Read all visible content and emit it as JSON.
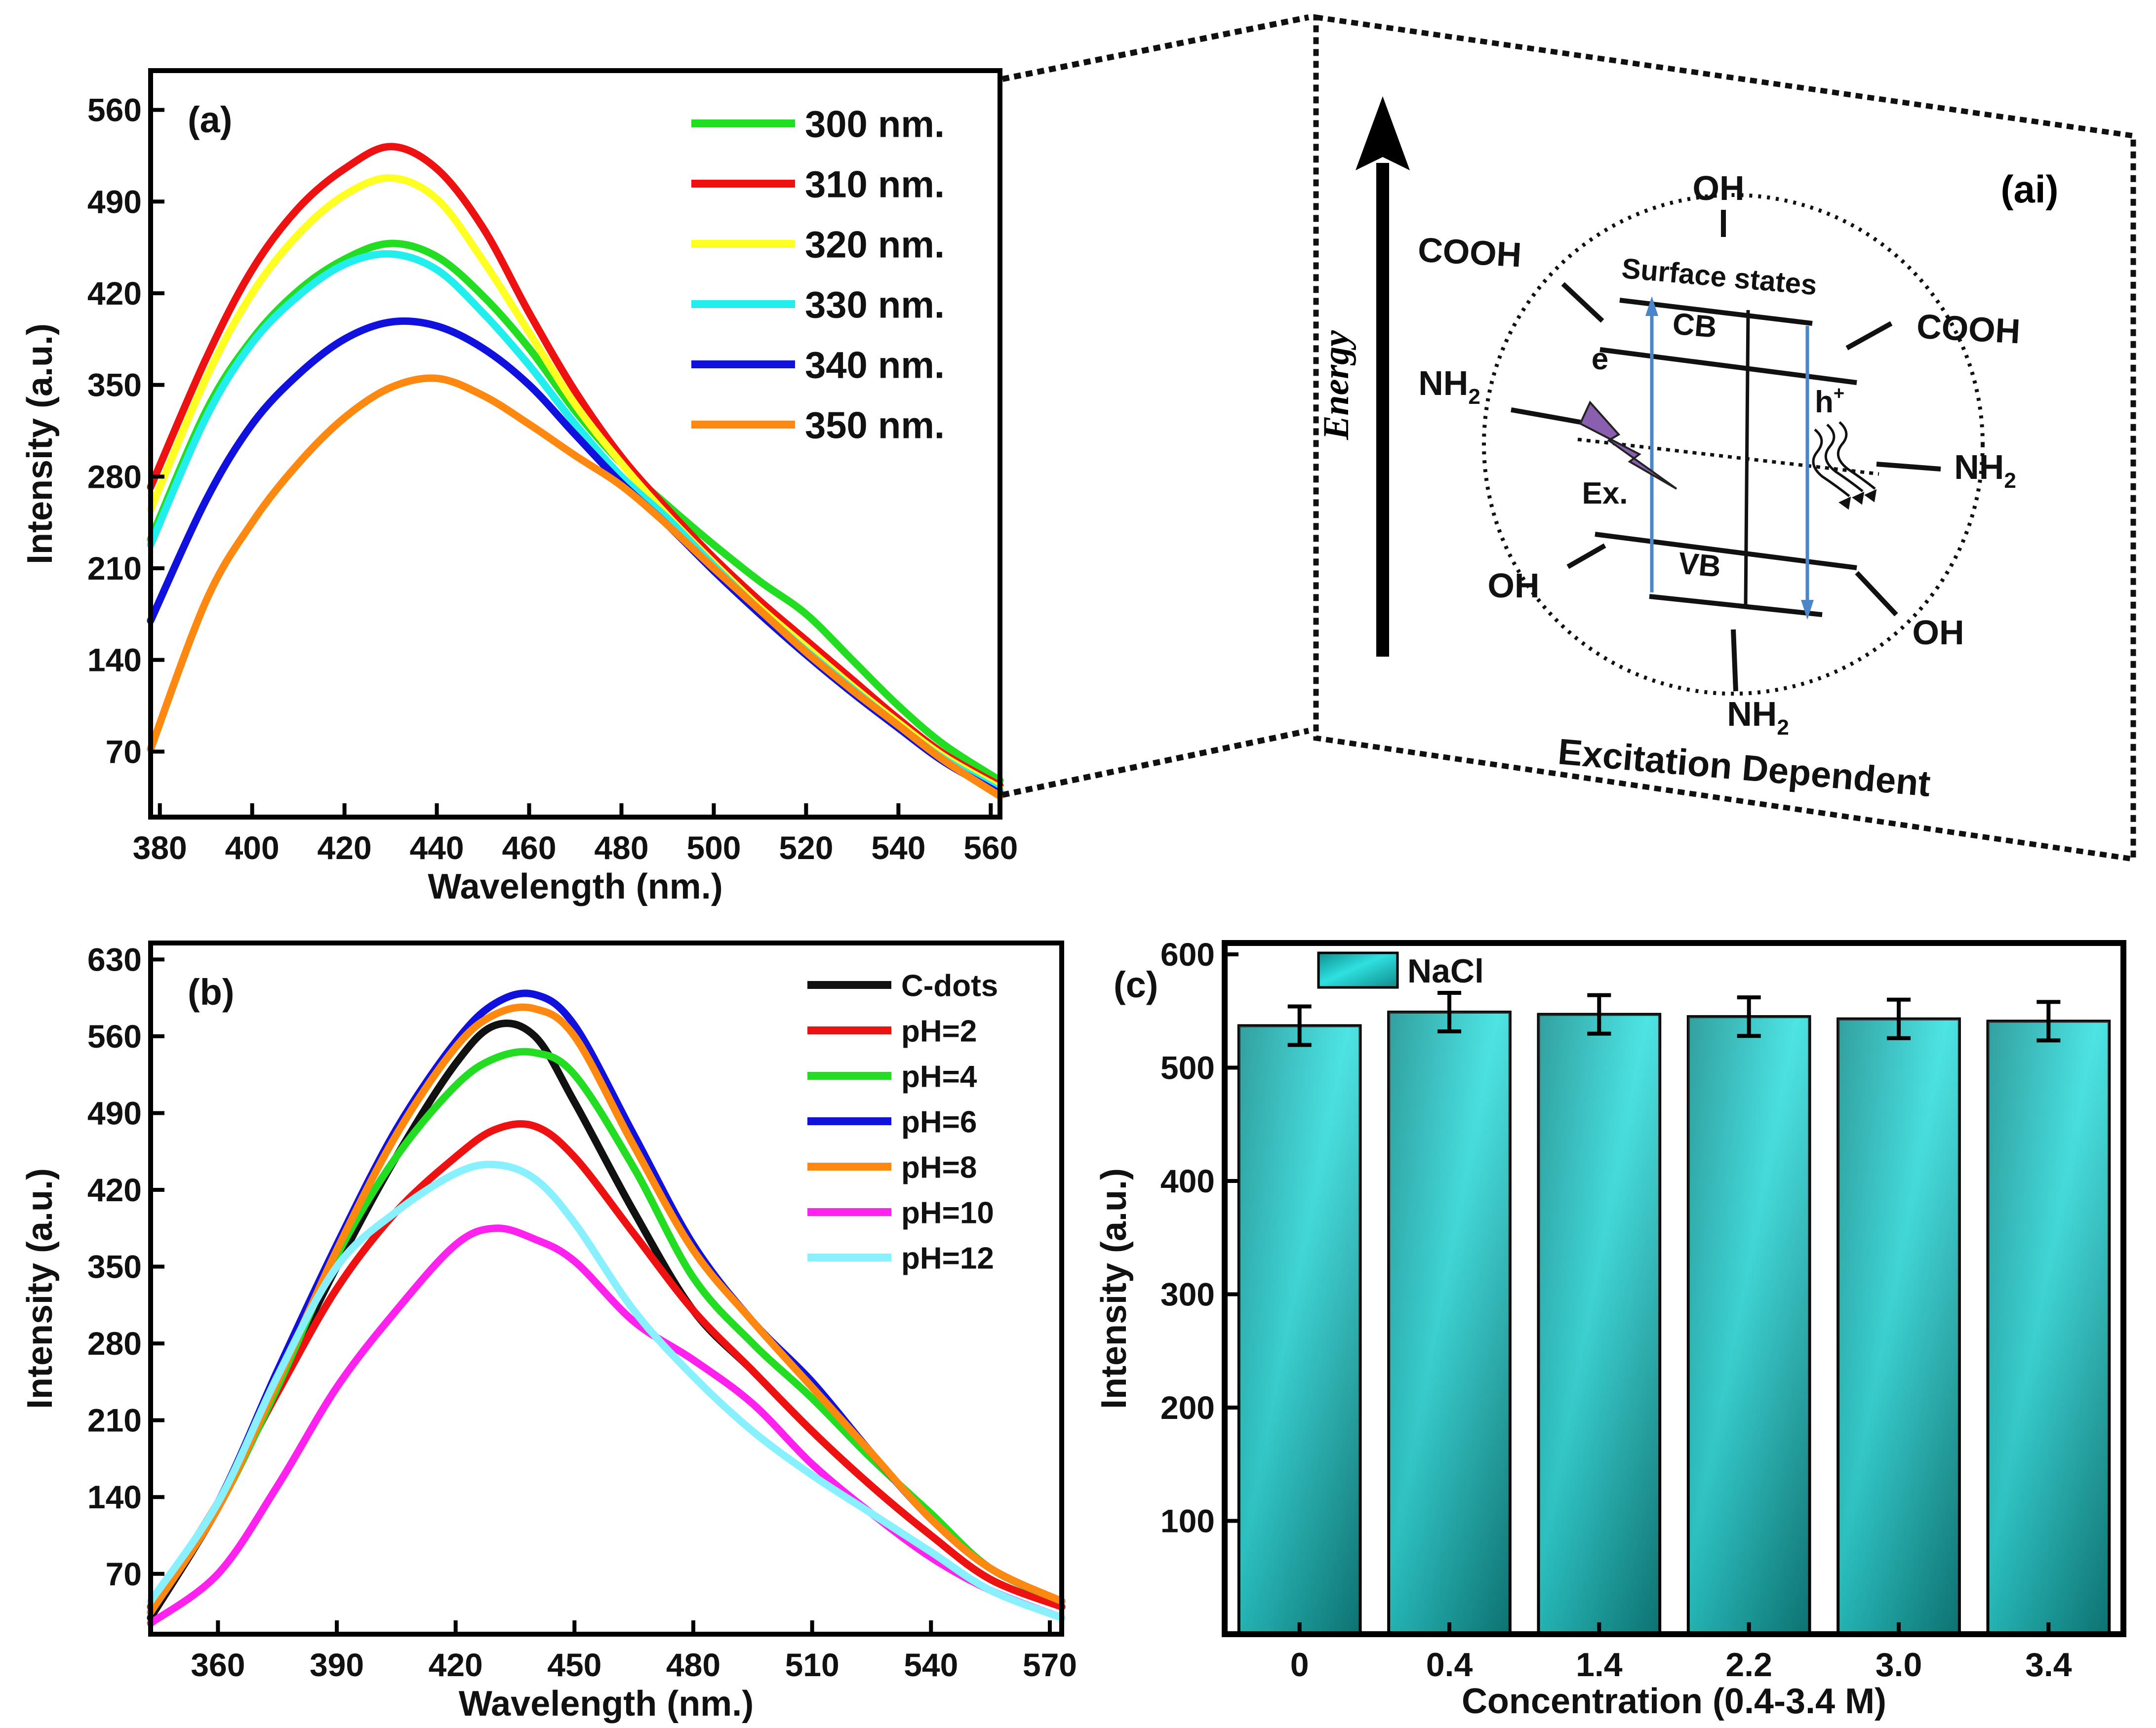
{
  "chart_data": [
    {
      "id": "a",
      "type": "line",
      "panel_label": "(a)",
      "xlabel": "Wavelength (nm.)",
      "ylabel": "Intensity (a.u.)",
      "xlim": [
        378,
        562
      ],
      "ylim": [
        20,
        590
      ],
      "x_ticks": [
        380,
        400,
        420,
        440,
        460,
        480,
        500,
        520,
        540,
        560
      ],
      "y_ticks": [
        70,
        140,
        210,
        280,
        350,
        420,
        490,
        560
      ],
      "x": [
        378,
        390,
        400,
        410,
        420,
        430,
        440,
        450,
        460,
        470,
        480,
        490,
        500,
        510,
        520,
        530,
        540,
        550,
        562
      ],
      "series": [
        {
          "name": "300 nm.",
          "color": "#22dd22",
          "values": [
            232,
            330,
            385,
            422,
            446,
            458,
            448,
            418,
            378,
            330,
            290,
            258,
            228,
            200,
            175,
            140,
            105,
            75,
            48
          ]
        },
        {
          "name": "310 nm.",
          "color": "#ee1111",
          "values": [
            272,
            370,
            438,
            485,
            515,
            532,
            515,
            470,
            405,
            345,
            295,
            255,
            218,
            185,
            155,
            125,
            95,
            68,
            44
          ]
        },
        {
          "name": "320 nm.",
          "color": "#ffff22",
          "values": [
            255,
            355,
            420,
            465,
            495,
            508,
            492,
            445,
            390,
            335,
            290,
            250,
            214,
            180,
            150,
            120,
            92,
            66,
            42
          ]
        },
        {
          "name": "330 nm.",
          "color": "#22eeee",
          "values": [
            228,
            325,
            382,
            418,
            442,
            450,
            438,
            405,
            365,
            320,
            280,
            248,
            212,
            178,
            147,
            118,
            90,
            64,
            40
          ]
        },
        {
          "name": "340 nm.",
          "color": "#1111dd",
          "values": [
            170,
            262,
            320,
            358,
            385,
            398,
            395,
            378,
            350,
            312,
            275,
            243,
            208,
            175,
            144,
            115,
            88,
            62,
            38
          ]
        },
        {
          "name": "350 nm.",
          "color": "#ff8811",
          "values": [
            72,
            185,
            245,
            290,
            325,
            348,
            355,
            342,
            320,
            296,
            273,
            243,
            210,
            178,
            146,
            117,
            90,
            63,
            36
          ]
        }
      ]
    },
    {
      "id": "b",
      "type": "line",
      "panel_label": "(b)",
      "xlabel": "Wavelength (nm.)",
      "ylabel": "Intensity (a.u.)",
      "xlim": [
        343,
        573
      ],
      "ylim": [
        15,
        645
      ],
      "x_ticks": [
        360,
        390,
        420,
        450,
        480,
        510,
        540,
        570
      ],
      "y_ticks": [
        70,
        140,
        210,
        280,
        350,
        420,
        490,
        560,
        630
      ],
      "x": [
        343,
        360,
        375,
        390,
        405,
        420,
        430,
        440,
        450,
        465,
        480,
        495,
        510,
        525,
        540,
        555,
        573
      ],
      "series": [
        {
          "name": "C-dots",
          "color": "#111111",
          "values": [
            30,
            130,
            240,
            350,
            450,
            535,
            570,
            560,
            500,
            400,
            310,
            255,
            200,
            150,
            105,
            65,
            40
          ]
        },
        {
          "name": "pH=2",
          "color": "#ee1111",
          "values": [
            40,
            135,
            235,
            330,
            400,
            450,
            475,
            478,
            450,
            380,
            310,
            255,
            200,
            150,
            105,
            65,
            40
          ]
        },
        {
          "name": "pH=4",
          "color": "#22dd22",
          "values": [
            35,
            130,
            240,
            360,
            450,
            515,
            540,
            545,
            525,
            440,
            340,
            280,
            230,
            175,
            125,
            75,
            45
          ]
        },
        {
          "name": "pH=6",
          "color": "#1111dd",
          "values": [
            35,
            135,
            255,
            370,
            475,
            555,
            590,
            598,
            570,
            470,
            370,
            300,
            245,
            180,
            120,
            75,
            45
          ]
        },
        {
          "name": "pH=8",
          "color": "#ff8811",
          "values": [
            35,
            130,
            245,
            365,
            470,
            550,
            580,
            585,
            560,
            460,
            365,
            300,
            240,
            180,
            120,
            75,
            45
          ]
        },
        {
          "name": "pH=10",
          "color": "#ff22ee",
          "values": [
            25,
            70,
            150,
            240,
            310,
            370,
            385,
            375,
            355,
            300,
            265,
            225,
            170,
            125,
            85,
            55,
            30
          ]
        },
        {
          "name": "pH=12",
          "color": "#88f0ff",
          "values": [
            45,
            135,
            250,
            350,
            400,
            435,
            443,
            430,
            390,
            310,
            250,
            200,
            160,
            125,
            90,
            55,
            30
          ]
        }
      ]
    },
    {
      "id": "c",
      "type": "bar",
      "panel_label": "(c)",
      "xlabel": "Concentration (0.4-3.4 M)",
      "ylabel": "Intensity (a.u.)",
      "ylim": [
        0,
        610
      ],
      "y_ticks": [
        100,
        200,
        300,
        400,
        500,
        600
      ],
      "categories": [
        "0",
        "0.4",
        "1.4",
        "2.2",
        "3.0",
        "3.4"
      ],
      "series": [
        {
          "name": "NaCl",
          "color": "#1fb5b5",
          "values": [
            537,
            549,
            547,
            545,
            543,
            541
          ],
          "errors": [
            17,
            17,
            17,
            17,
            17,
            17
          ]
        }
      ]
    }
  ],
  "schematic": {
    "panel_label": "(ai)",
    "energy_label": "Energy",
    "surface_label": "Surface states",
    "cb_label": "CB",
    "vb_label": "VB",
    "electron_label": "e",
    "hole_label": "h",
    "hole_sup": "+",
    "excitation_label": "Ex.",
    "caption": "Excitation Dependent",
    "oh": "OH",
    "cooh": "COOH",
    "nh": "NH",
    "sub2": "2",
    "line_color": "#4a86c8",
    "bolt_color": "#8a5fb0"
  }
}
